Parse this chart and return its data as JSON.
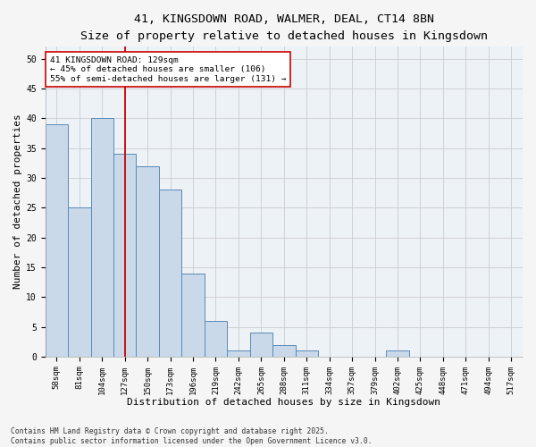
{
  "title_line1": "41, KINGSDOWN ROAD, WALMER, DEAL, CT14 8BN",
  "title_line2": "Size of property relative to detached houses in Kingsdown",
  "xlabel": "Distribution of detached houses by size in Kingsdown",
  "ylabel": "Number of detached properties",
  "categories": [
    "58sqm",
    "81sqm",
    "104sqm",
    "127sqm",
    "150sqm",
    "173sqm",
    "196sqm",
    "219sqm",
    "242sqm",
    "265sqm",
    "288sqm",
    "311sqm",
    "334sqm",
    "357sqm",
    "379sqm",
    "402sqm",
    "425sqm",
    "448sqm",
    "471sqm",
    "494sqm",
    "517sqm"
  ],
  "values": [
    39,
    25,
    40,
    34,
    32,
    28,
    14,
    6,
    1,
    4,
    2,
    1,
    0,
    0,
    0,
    1,
    0,
    0,
    0,
    0,
    0
  ],
  "bar_color": "#c9d9ea",
  "bar_edge_color": "#5a8ab5",
  "vline_x": 3,
  "vline_color": "#cc0000",
  "annotation_text": "41 KINGSDOWN ROAD: 129sqm\n← 45% of detached houses are smaller (106)\n55% of semi-detached houses are larger (131) →",
  "annotation_box_color": "#ffffff",
  "annotation_box_edge": "#cc0000",
  "ylim": [
    0,
    52
  ],
  "yticks": [
    0,
    5,
    10,
    15,
    20,
    25,
    30,
    35,
    40,
    45,
    50
  ],
  "grid_color": "#cccccc",
  "bg_color": "#edf2f7",
  "footer": "Contains HM Land Registry data © Crown copyright and database right 2025.\nContains public sector information licensed under the Open Government Licence v3.0.",
  "title_fontsize": 9.5,
  "subtitle_fontsize": 8.5,
  "tick_fontsize": 6.5,
  "label_fontsize": 8,
  "annotation_fontsize": 6.8,
  "footer_fontsize": 5.8
}
